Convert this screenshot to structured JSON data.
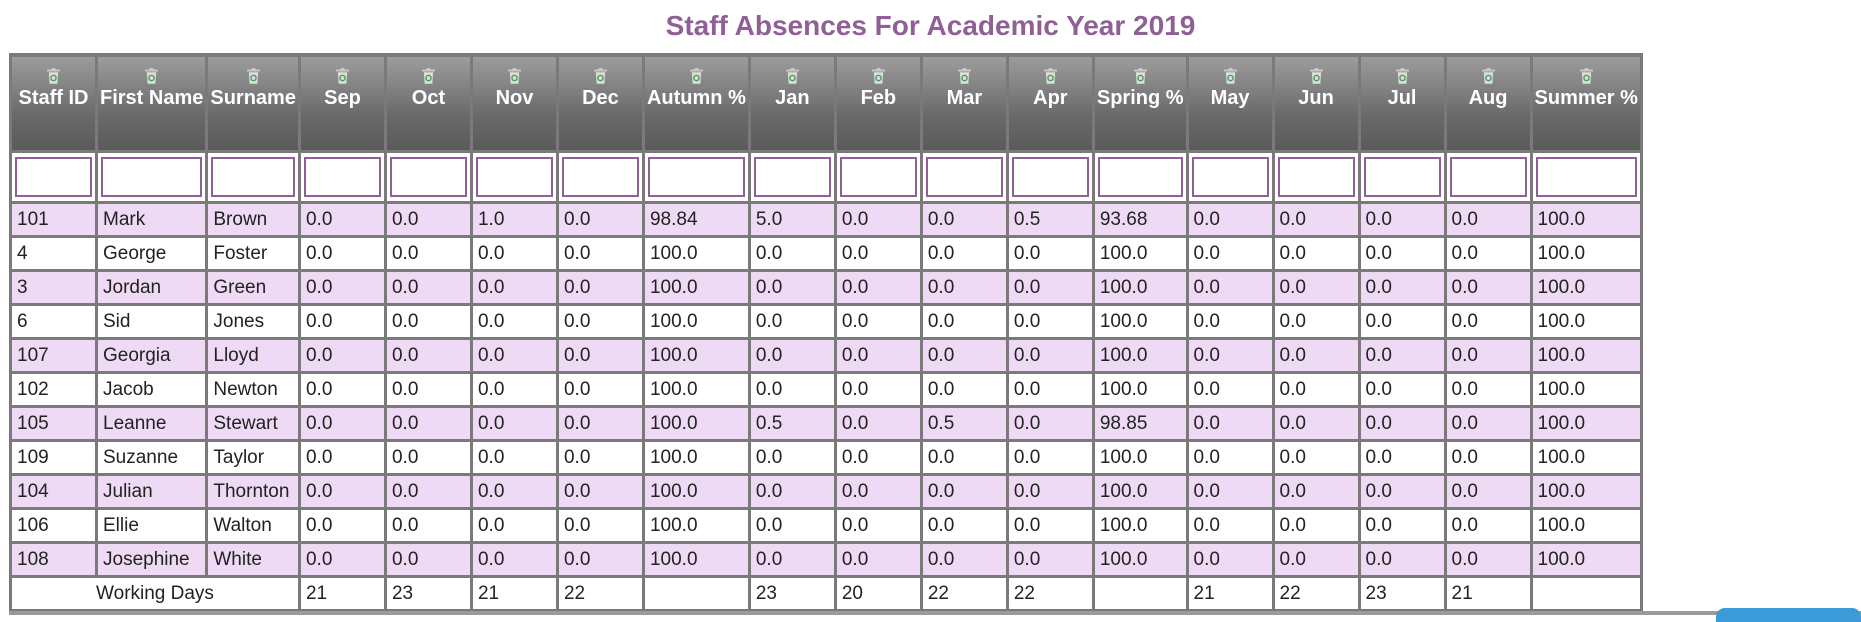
{
  "title": "Staff Absences For Academic Year 2019",
  "icons": {
    "sort": "recycle-bin-icon"
  },
  "colors": {
    "title": "#8f5f95",
    "row_alt": "#efdaf5",
    "header_bg": "#6a6a6a",
    "filter_border": "#8f5f95"
  },
  "columns": [
    {
      "key": "staff_id",
      "label": "Staff ID"
    },
    {
      "key": "first_name",
      "label": "First Name"
    },
    {
      "key": "surname",
      "label": "Surname"
    },
    {
      "key": "sep",
      "label": "Sep"
    },
    {
      "key": "oct",
      "label": "Oct"
    },
    {
      "key": "nov",
      "label": "Nov"
    },
    {
      "key": "dec",
      "label": "Dec"
    },
    {
      "key": "autumn",
      "label": "Autumn %"
    },
    {
      "key": "jan",
      "label": "Jan"
    },
    {
      "key": "feb",
      "label": "Feb"
    },
    {
      "key": "mar",
      "label": "Mar"
    },
    {
      "key": "apr",
      "label": "Apr"
    },
    {
      "key": "spring",
      "label": "Spring %"
    },
    {
      "key": "may",
      "label": "May"
    },
    {
      "key": "jun",
      "label": "Jun"
    },
    {
      "key": "jul",
      "label": "Jul"
    },
    {
      "key": "aug",
      "label": "Aug"
    },
    {
      "key": "summer",
      "label": "Summer %"
    }
  ],
  "filters": [
    "",
    "",
    "",
    "",
    "",
    "",
    "",
    "",
    "",
    "",
    "",
    "",
    "",
    "",
    "",
    "",
    "",
    ""
  ],
  "rows": [
    [
      "101",
      "Mark",
      "Brown",
      "0.0",
      "0.0",
      "1.0",
      "0.0",
      "98.84",
      "5.0",
      "0.0",
      "0.0",
      "0.5",
      "93.68",
      "0.0",
      "0.0",
      "0.0",
      "0.0",
      "100.0"
    ],
    [
      "4",
      "George",
      "Foster",
      "0.0",
      "0.0",
      "0.0",
      "0.0",
      "100.0",
      "0.0",
      "0.0",
      "0.0",
      "0.0",
      "100.0",
      "0.0",
      "0.0",
      "0.0",
      "0.0",
      "100.0"
    ],
    [
      "3",
      "Jordan",
      "Green",
      "0.0",
      "0.0",
      "0.0",
      "0.0",
      "100.0",
      "0.0",
      "0.0",
      "0.0",
      "0.0",
      "100.0",
      "0.0",
      "0.0",
      "0.0",
      "0.0",
      "100.0"
    ],
    [
      "6",
      "Sid",
      "Jones",
      "0.0",
      "0.0",
      "0.0",
      "0.0",
      "100.0",
      "0.0",
      "0.0",
      "0.0",
      "0.0",
      "100.0",
      "0.0",
      "0.0",
      "0.0",
      "0.0",
      "100.0"
    ],
    [
      "107",
      "Georgia",
      "Lloyd",
      "0.0",
      "0.0",
      "0.0",
      "0.0",
      "100.0",
      "0.0",
      "0.0",
      "0.0",
      "0.0",
      "100.0",
      "0.0",
      "0.0",
      "0.0",
      "0.0",
      "100.0"
    ],
    [
      "102",
      "Jacob",
      "Newton",
      "0.0",
      "0.0",
      "0.0",
      "0.0",
      "100.0",
      "0.0",
      "0.0",
      "0.0",
      "0.0",
      "100.0",
      "0.0",
      "0.0",
      "0.0",
      "0.0",
      "100.0"
    ],
    [
      "105",
      "Leanne",
      "Stewart",
      "0.0",
      "0.0",
      "0.0",
      "0.0",
      "100.0",
      "0.5",
      "0.0",
      "0.5",
      "0.0",
      "98.85",
      "0.0",
      "0.0",
      "0.0",
      "0.0",
      "100.0"
    ],
    [
      "109",
      "Suzanne",
      "Taylor",
      "0.0",
      "0.0",
      "0.0",
      "0.0",
      "100.0",
      "0.0",
      "0.0",
      "0.0",
      "0.0",
      "100.0",
      "0.0",
      "0.0",
      "0.0",
      "0.0",
      "100.0"
    ],
    [
      "104",
      "Julian",
      "Thornton",
      "0.0",
      "0.0",
      "0.0",
      "0.0",
      "100.0",
      "0.0",
      "0.0",
      "0.0",
      "0.0",
      "100.0",
      "0.0",
      "0.0",
      "0.0",
      "0.0",
      "100.0"
    ],
    [
      "106",
      "Ellie",
      "Walton",
      "0.0",
      "0.0",
      "0.0",
      "0.0",
      "100.0",
      "0.0",
      "0.0",
      "0.0",
      "0.0",
      "100.0",
      "0.0",
      "0.0",
      "0.0",
      "0.0",
      "100.0"
    ],
    [
      "108",
      "Josephine",
      "White",
      "0.0",
      "0.0",
      "0.0",
      "0.0",
      "100.0",
      "0.0",
      "0.0",
      "0.0",
      "0.0",
      "100.0",
      "0.0",
      "0.0",
      "0.0",
      "0.0",
      "100.0"
    ]
  ],
  "footer": {
    "label": "Working Days",
    "values": [
      "21",
      "23",
      "21",
      "22",
      "",
      "23",
      "20",
      "22",
      "22",
      "",
      "21",
      "22",
      "23",
      "21",
      ""
    ]
  }
}
